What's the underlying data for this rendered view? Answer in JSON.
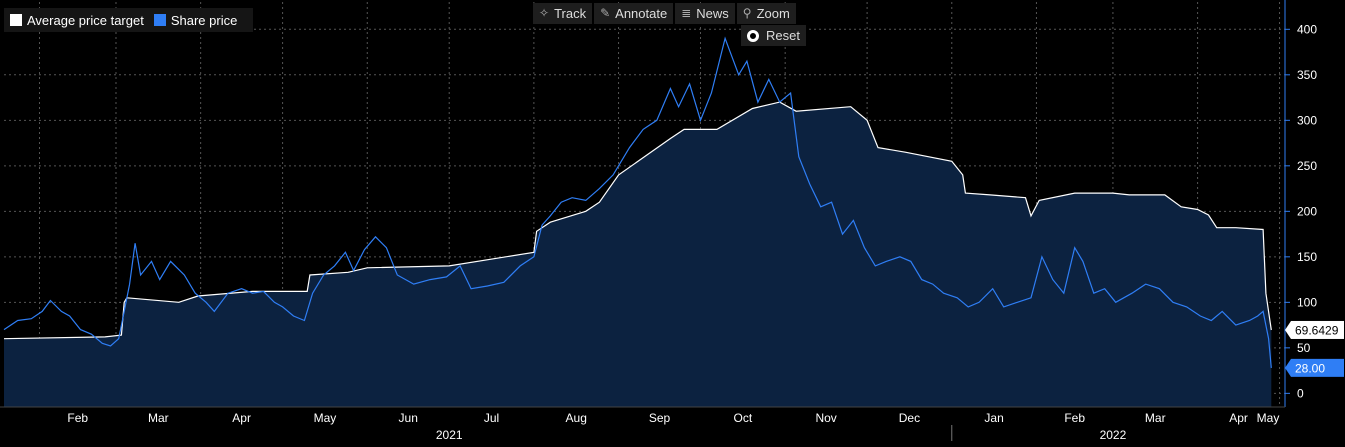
{
  "legend": {
    "items": [
      {
        "label": "Average price target",
        "color": "#ffffff"
      },
      {
        "label": "Share price",
        "color": "#2f7ef5"
      }
    ]
  },
  "toolbar": {
    "track": {
      "label": "Track",
      "icon": "crosshair-icon"
    },
    "annotate": {
      "label": "Annotate",
      "icon": "pencil-icon"
    },
    "news": {
      "label": "News",
      "icon": "list-icon"
    },
    "zoom": {
      "label": "Zoom",
      "icon": "magnifier-icon"
    },
    "reset": {
      "label": "Reset",
      "icon": "radio-icon"
    }
  },
  "colors": {
    "background": "#000000",
    "price_target_line": "#ffffff",
    "share_price_line": "#2f7ef5",
    "area_fill": "#0c2240",
    "axis": "#2f7ef5",
    "grid": "#555555"
  },
  "chart_data": {
    "type": "line",
    "title": "",
    "xlabel": "",
    "ylabel": "",
    "x_range": [
      "2021-01-19",
      "2022-05-03"
    ],
    "ylim": [
      -15,
      430
    ],
    "y_ticks": [
      0,
      50,
      100,
      150,
      200,
      250,
      300,
      350,
      400
    ],
    "x_month_ticks": [
      {
        "label": "Feb",
        "date": "2021-02-01"
      },
      {
        "label": "Mar",
        "date": "2021-03-01"
      },
      {
        "label": "Apr",
        "date": "2021-04-01"
      },
      {
        "label": "May",
        "date": "2021-05-01"
      },
      {
        "label": "Jun",
        "date": "2021-06-01"
      },
      {
        "label": "Jul",
        "date": "2021-07-01"
      },
      {
        "label": "Aug",
        "date": "2021-08-01"
      },
      {
        "label": "Sep",
        "date": "2021-09-01"
      },
      {
        "label": "Oct",
        "date": "2021-10-01"
      },
      {
        "label": "Nov",
        "date": "2021-11-01"
      },
      {
        "label": "Dec",
        "date": "2021-12-01"
      },
      {
        "label": "Jan",
        "date": "2022-01-01"
      },
      {
        "label": "Feb",
        "date": "2022-02-01"
      },
      {
        "label": "Mar",
        "date": "2022-03-01"
      },
      {
        "label": "Apr",
        "date": "2022-04-01"
      },
      {
        "label": "May",
        "date": "2022-05-01"
      }
    ],
    "x_year_labels": [
      {
        "label": "2021",
        "date": "2021-07-01"
      },
      {
        "label": "2022",
        "date": "2022-03-01"
      }
    ],
    "year_divider": "2022-01-01",
    "grid": true,
    "legend_position": "top-left",
    "last_values": [
      {
        "series": "Average price target",
        "label": "69.6429",
        "value": 69.6429
      },
      {
        "series": "Share price",
        "label": "28.00",
        "value": 28.0
      }
    ],
    "series": [
      {
        "name": "Average price target",
        "fill": true,
        "points": [
          [
            "2021-01-19",
            60
          ],
          [
            "2021-02-25",
            62
          ],
          [
            "2021-03-03",
            64
          ],
          [
            "2021-03-04",
            100
          ],
          [
            "2021-03-05",
            105
          ],
          [
            "2021-03-24",
            100
          ],
          [
            "2021-03-31",
            107
          ],
          [
            "2021-04-20",
            112
          ],
          [
            "2021-05-10",
            112
          ],
          [
            "2021-05-11",
            130
          ],
          [
            "2021-05-25",
            133
          ],
          [
            "2021-06-01",
            138
          ],
          [
            "2021-07-01",
            140
          ],
          [
            "2021-08-01",
            155
          ],
          [
            "2021-08-02",
            178
          ],
          [
            "2021-08-07",
            188
          ],
          [
            "2021-08-20",
            200
          ],
          [
            "2021-08-25",
            210
          ],
          [
            "2021-09-01",
            240
          ],
          [
            "2021-09-20",
            280
          ],
          [
            "2021-09-25",
            290
          ],
          [
            "2021-10-07",
            290
          ],
          [
            "2021-10-20",
            313
          ],
          [
            "2021-10-30",
            320
          ],
          [
            "2021-11-05",
            310
          ],
          [
            "2021-11-25",
            315
          ],
          [
            "2021-12-01",
            300
          ],
          [
            "2021-12-05",
            270
          ],
          [
            "2021-12-15",
            265
          ],
          [
            "2022-01-01",
            255
          ],
          [
            "2022-01-05",
            240
          ],
          [
            "2022-01-06",
            220
          ],
          [
            "2022-01-15",
            218
          ],
          [
            "2022-01-28",
            215
          ],
          [
            "2022-01-30",
            195
          ],
          [
            "2022-02-02",
            212
          ],
          [
            "2022-02-15",
            220
          ],
          [
            "2022-03-01",
            220
          ],
          [
            "2022-03-07",
            218
          ],
          [
            "2022-03-20",
            218
          ],
          [
            "2022-03-26",
            205
          ],
          [
            "2022-04-01",
            202
          ],
          [
            "2022-04-05",
            196
          ],
          [
            "2022-04-08",
            182
          ],
          [
            "2022-04-15",
            182
          ],
          [
            "2022-04-25",
            180
          ],
          [
            "2022-04-26",
            110
          ],
          [
            "2022-04-28",
            69.6429
          ]
        ]
      },
      {
        "name": "Share price",
        "fill": false,
        "points": [
          [
            "2021-01-19",
            70
          ],
          [
            "2021-01-24",
            80
          ],
          [
            "2021-01-29",
            82
          ],
          [
            "2021-02-02",
            90
          ],
          [
            "2021-02-05",
            102
          ],
          [
            "2021-02-09",
            90
          ],
          [
            "2021-02-12",
            85
          ],
          [
            "2021-02-16",
            70
          ],
          [
            "2021-02-20",
            65
          ],
          [
            "2021-02-24",
            55
          ],
          [
            "2021-02-27",
            52
          ],
          [
            "2021-03-02",
            60
          ],
          [
            "2021-03-04",
            90
          ],
          [
            "2021-03-06",
            120
          ],
          [
            "2021-03-08",
            165
          ],
          [
            "2021-03-10",
            130
          ],
          [
            "2021-03-14",
            145
          ],
          [
            "2021-03-17",
            125
          ],
          [
            "2021-03-21",
            145
          ],
          [
            "2021-03-26",
            130
          ],
          [
            "2021-03-30",
            110
          ],
          [
            "2021-04-03",
            100
          ],
          [
            "2021-04-06",
            90
          ],
          [
            "2021-04-11",
            110
          ],
          [
            "2021-04-16",
            115
          ],
          [
            "2021-04-20",
            110
          ],
          [
            "2021-04-24",
            112
          ],
          [
            "2021-04-28",
            100
          ],
          [
            "2021-05-01",
            95
          ],
          [
            "2021-05-05",
            85
          ],
          [
            "2021-05-09",
            80
          ],
          [
            "2021-05-12",
            110
          ],
          [
            "2021-05-16",
            130
          ],
          [
            "2021-05-20",
            140
          ],
          [
            "2021-05-24",
            155
          ],
          [
            "2021-05-27",
            135
          ],
          [
            "2021-05-31",
            158
          ],
          [
            "2021-06-04",
            172
          ],
          [
            "2021-06-08",
            160
          ],
          [
            "2021-06-12",
            130
          ],
          [
            "2021-06-18",
            120
          ],
          [
            "2021-06-24",
            125
          ],
          [
            "2021-06-30",
            128
          ],
          [
            "2021-07-05",
            140
          ],
          [
            "2021-07-09",
            115
          ],
          [
            "2021-07-15",
            118
          ],
          [
            "2021-07-21",
            122
          ],
          [
            "2021-07-27",
            140
          ],
          [
            "2021-08-01",
            150
          ],
          [
            "2021-08-04",
            185
          ],
          [
            "2021-08-07",
            195
          ],
          [
            "2021-08-11",
            210
          ],
          [
            "2021-08-15",
            215
          ],
          [
            "2021-08-20",
            212
          ],
          [
            "2021-08-25",
            225
          ],
          [
            "2021-08-30",
            240
          ],
          [
            "2021-09-05",
            270
          ],
          [
            "2021-09-10",
            290
          ],
          [
            "2021-09-15",
            300
          ],
          [
            "2021-09-20",
            335
          ],
          [
            "2021-09-23",
            315
          ],
          [
            "2021-09-27",
            340
          ],
          [
            "2021-10-01",
            300
          ],
          [
            "2021-10-05",
            330
          ],
          [
            "2021-10-10",
            390
          ],
          [
            "2021-10-15",
            350
          ],
          [
            "2021-10-18",
            365
          ],
          [
            "2021-10-22",
            320
          ],
          [
            "2021-10-26",
            345
          ],
          [
            "2021-10-30",
            320
          ],
          [
            "2021-11-03",
            330
          ],
          [
            "2021-11-06",
            260
          ],
          [
            "2021-11-10",
            230
          ],
          [
            "2021-11-14",
            205
          ],
          [
            "2021-11-18",
            210
          ],
          [
            "2021-11-22",
            175
          ],
          [
            "2021-11-26",
            190
          ],
          [
            "2021-11-30",
            160
          ],
          [
            "2021-12-04",
            140
          ],
          [
            "2021-12-08",
            145
          ],
          [
            "2021-12-13",
            150
          ],
          [
            "2021-12-17",
            145
          ],
          [
            "2021-12-21",
            125
          ],
          [
            "2021-12-25",
            120
          ],
          [
            "2021-12-29",
            110
          ],
          [
            "2022-01-03",
            105
          ],
          [
            "2022-01-07",
            95
          ],
          [
            "2022-01-11",
            100
          ],
          [
            "2022-01-16",
            115
          ],
          [
            "2022-01-20",
            95
          ],
          [
            "2022-01-25",
            100
          ],
          [
            "2022-01-30",
            105
          ],
          [
            "2022-02-03",
            150
          ],
          [
            "2022-02-07",
            125
          ],
          [
            "2022-02-11",
            110
          ],
          [
            "2022-02-15",
            160
          ],
          [
            "2022-02-18",
            145
          ],
          [
            "2022-02-22",
            110
          ],
          [
            "2022-02-26",
            115
          ],
          [
            "2022-03-02",
            100
          ],
          [
            "2022-03-08",
            110
          ],
          [
            "2022-03-13",
            120
          ],
          [
            "2022-03-18",
            115
          ],
          [
            "2022-03-23",
            100
          ],
          [
            "2022-03-28",
            95
          ],
          [
            "2022-04-02",
            85
          ],
          [
            "2022-04-06",
            80
          ],
          [
            "2022-04-10",
            90
          ],
          [
            "2022-04-15",
            75
          ],
          [
            "2022-04-20",
            80
          ],
          [
            "2022-04-23",
            85
          ],
          [
            "2022-04-25",
            90
          ],
          [
            "2022-04-27",
            60
          ],
          [
            "2022-04-28",
            28
          ]
        ]
      }
    ]
  }
}
